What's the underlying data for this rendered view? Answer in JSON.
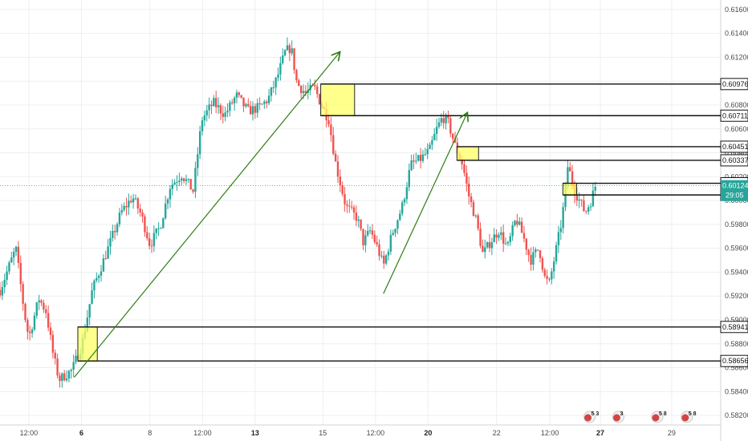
{
  "chart_data": {
    "type": "candlestick",
    "y_axis": {
      "range": [
        0.5812,
        0.6168
      ],
      "ticks": [
        "0.61600",
        "0.61400",
        "0.61200",
        "0.61000",
        "0.60800",
        "0.60600",
        "0.60400",
        "0.60200",
        "0.60000",
        "0.59800",
        "0.59600",
        "0.59400",
        "0.59200",
        "0.59000",
        "0.58800",
        "0.58600",
        "0.58400",
        "0.58200"
      ]
    },
    "x_axis": {
      "ticks": [
        {
          "label": "12:00",
          "bold": false
        },
        {
          "label": "6",
          "bold": true
        },
        {
          "label": "8",
          "bold": false
        },
        {
          "label": "12:00",
          "bold": false
        },
        {
          "label": "13",
          "bold": true
        },
        {
          "label": "15",
          "bold": false
        },
        {
          "label": "12:00",
          "bold": false
        },
        {
          "label": "20",
          "bold": true
        },
        {
          "label": "22",
          "bold": false
        },
        {
          "label": "12:00",
          "bold": false
        },
        {
          "label": "27",
          "bold": true
        },
        {
          "label": "29",
          "bold": false
        }
      ]
    },
    "levels": [
      {
        "label": "0.60976",
        "price": 0.60976
      },
      {
        "label": "0.60711",
        "price": 0.60711
      },
      {
        "label": "0.60451",
        "price": 0.60451
      },
      {
        "label": "0.60337",
        "price": 0.60337
      },
      {
        "label": "0.60145",
        "price": 0.60145
      },
      {
        "label": "0.60047",
        "price": 0.60047
      },
      {
        "label": "0.58941",
        "price": 0.58941
      },
      {
        "label": "0.58656",
        "price": 0.58656
      }
    ],
    "current_price": {
      "label": "0.60124",
      "price": 0.60124,
      "countdown": "29:05"
    },
    "zones": [
      {
        "t0": 0.108,
        "t1": 0.135,
        "p_top": 0.58941,
        "p_bot": 0.58656
      },
      {
        "t0": 0.445,
        "t1": 0.492,
        "p_top": 0.60976,
        "p_bot": 0.60711
      },
      {
        "t0": 0.634,
        "t1": 0.664,
        "p_top": 0.60451,
        "p_bot": 0.60337
      },
      {
        "t0": 0.781,
        "t1": 0.8,
        "p_top": 0.60145,
        "p_bot": 0.60047
      }
    ],
    "trend_arrows": [
      {
        "t0": 0.103,
        "p0": 0.5852,
        "t1": 0.471,
        "p1": 0.6124
      },
      {
        "t0": 0.532,
        "p0": 0.5922,
        "t1": 0.648,
        "p1": 0.6073
      }
    ],
    "price_path": [
      {
        "t": 0.0,
        "p": 0.5925
      },
      {
        "t": 0.022,
        "p": 0.596
      },
      {
        "t": 0.034,
        "p": 0.5905
      },
      {
        "t": 0.04,
        "p": 0.5885
      },
      {
        "t": 0.054,
        "p": 0.5918
      },
      {
        "t": 0.064,
        "p": 0.5907
      },
      {
        "t": 0.074,
        "p": 0.587
      },
      {
        "t": 0.082,
        "p": 0.585
      },
      {
        "t": 0.1,
        "p": 0.5858
      },
      {
        "t": 0.114,
        "p": 0.588
      },
      {
        "t": 0.128,
        "p": 0.5925
      },
      {
        "t": 0.15,
        "p": 0.596
      },
      {
        "t": 0.168,
        "p": 0.599
      },
      {
        "t": 0.184,
        "p": 0.6003
      },
      {
        "t": 0.196,
        "p": 0.5988
      },
      {
        "t": 0.208,
        "p": 0.5963
      },
      {
        "t": 0.222,
        "p": 0.5978
      },
      {
        "t": 0.236,
        "p": 0.6012
      },
      {
        "t": 0.252,
        "p": 0.6022
      },
      {
        "t": 0.268,
        "p": 0.6008
      },
      {
        "t": 0.28,
        "p": 0.6068
      },
      {
        "t": 0.296,
        "p": 0.6082
      },
      {
        "t": 0.312,
        "p": 0.6072
      },
      {
        "t": 0.328,
        "p": 0.6088
      },
      {
        "t": 0.344,
        "p": 0.6075
      },
      {
        "t": 0.36,
        "p": 0.6078
      },
      {
        "t": 0.372,
        "p": 0.6085
      },
      {
        "t": 0.384,
        "p": 0.6102
      },
      {
        "t": 0.396,
        "p": 0.6125
      },
      {
        "t": 0.404,
        "p": 0.6128
      },
      {
        "t": 0.412,
        "p": 0.6098
      },
      {
        "t": 0.424,
        "p": 0.609
      },
      {
        "t": 0.436,
        "p": 0.6095
      },
      {
        "t": 0.446,
        "p": 0.608
      },
      {
        "t": 0.456,
        "p": 0.6068
      },
      {
        "t": 0.466,
        "p": 0.603
      },
      {
        "t": 0.474,
        "p": 0.601
      },
      {
        "t": 0.48,
        "p": 0.5995
      },
      {
        "t": 0.488,
        "p": 0.599
      },
      {
        "t": 0.496,
        "p": 0.5985
      },
      {
        "t": 0.504,
        "p": 0.5965
      },
      {
        "t": 0.514,
        "p": 0.5975
      },
      {
        "t": 0.524,
        "p": 0.596
      },
      {
        "t": 0.532,
        "p": 0.5945
      },
      {
        "t": 0.544,
        "p": 0.5972
      },
      {
        "t": 0.558,
        "p": 0.5995
      },
      {
        "t": 0.57,
        "p": 0.603
      },
      {
        "t": 0.584,
        "p": 0.6035
      },
      {
        "t": 0.596,
        "p": 0.6042
      },
      {
        "t": 0.606,
        "p": 0.606
      },
      {
        "t": 0.614,
        "p": 0.607
      },
      {
        "t": 0.622,
        "p": 0.6065
      },
      {
        "t": 0.632,
        "p": 0.6045
      },
      {
        "t": 0.642,
        "p": 0.603
      },
      {
        "t": 0.65,
        "p": 0.6005
      },
      {
        "t": 0.66,
        "p": 0.5985
      },
      {
        "t": 0.67,
        "p": 0.5955
      },
      {
        "t": 0.68,
        "p": 0.5965
      },
      {
        "t": 0.692,
        "p": 0.5975
      },
      {
        "t": 0.704,
        "p": 0.596
      },
      {
        "t": 0.716,
        "p": 0.5985
      },
      {
        "t": 0.726,
        "p": 0.597
      },
      {
        "t": 0.736,
        "p": 0.595
      },
      {
        "t": 0.748,
        "p": 0.596
      },
      {
        "t": 0.756,
        "p": 0.5935
      },
      {
        "t": 0.762,
        "p": 0.593
      },
      {
        "t": 0.772,
        "p": 0.596
      },
      {
        "t": 0.78,
        "p": 0.5985
      },
      {
        "t": 0.788,
        "p": 0.603
      },
      {
        "t": 0.796,
        "p": 0.601
      },
      {
        "t": 0.804,
        "p": 0.6
      },
      {
        "t": 0.812,
        "p": 0.599
      },
      {
        "t": 0.82,
        "p": 0.6
      },
      {
        "t": 0.826,
        "p": 0.6012
      }
    ]
  },
  "events": [
    {
      "label": "5",
      "sub": "3",
      "t": 0.818
    },
    {
      "label": "3",
      "sub": "",
      "t": 0.858
    },
    {
      "label": "5",
      "sub": "8",
      "t": 0.912
    },
    {
      "label": "5",
      "sub": "8",
      "t": 0.953
    }
  ],
  "colors": {
    "up": "#26a69a",
    "down": "#ef5350",
    "level_box": "#ffffff",
    "zone": "#ffff66",
    "arrow": "#2e7d14",
    "current": "#26a69a",
    "grid": "#eceff2"
  }
}
